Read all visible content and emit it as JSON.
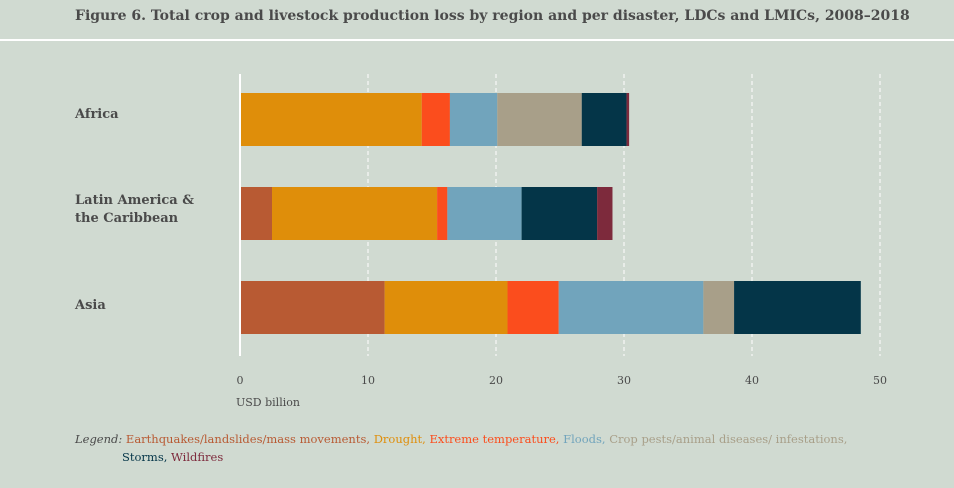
{
  "chart_data": {
    "type": "bar",
    "orientation": "horizontal",
    "stacked": true,
    "title": "Figure 6. Total crop and livestock production loss by region and per disaster, LDCs and LMICs, 2008–2018",
    "xlabel": "USD billion",
    "ylabel": "",
    "xlim": [
      0,
      50
    ],
    "x_ticks": [
      "0",
      "10",
      "20",
      "30",
      "40",
      "50"
    ],
    "categories": [
      "Africa",
      "Latin America &\nthe Caribbean",
      "Asia"
    ],
    "series": [
      {
        "name": "Earthquakes/landslides/mass movements",
        "color": "#b85a33",
        "values": [
          0,
          2.5,
          11.3
        ]
      },
      {
        "name": "Drought",
        "color": "#df8e0a",
        "values": [
          14.2,
          12.9,
          9.6
        ]
      },
      {
        "name": "Extreme temperature",
        "color": "#fb4d1d",
        "values": [
          2.2,
          0.8,
          4.0
        ]
      },
      {
        "name": "Floods",
        "color": "#71a4bc",
        "values": [
          3.7,
          5.8,
          11.3
        ]
      },
      {
        "name": "Crop pests/animal diseases/ infestations",
        "color": "#a89f89",
        "values": [
          6.6,
          0,
          2.4
        ]
      },
      {
        "name": "Storms",
        "color": "#043548",
        "values": [
          3.5,
          5.9,
          9.9
        ]
      },
      {
        "name": "Wildfires",
        "color": "#7d2a3c",
        "values": [
          0.2,
          1.2,
          0
        ]
      }
    ],
    "grid": true,
    "legend_position": "bottom"
  },
  "legend": {
    "lead": "Legend:",
    "items": [
      "Earthquakes/landslides/mass movements,",
      "Drought,",
      "Extreme temperature,",
      "Floods,",
      "Crop pests/animal diseases/ infestations,",
      "Storms,",
      "Wildfires"
    ]
  }
}
